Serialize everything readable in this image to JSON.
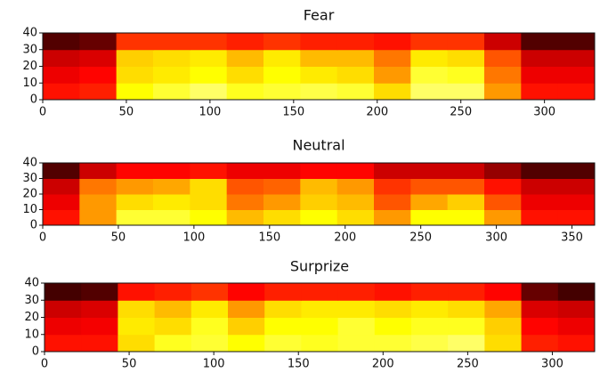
{
  "chart_data": [
    {
      "type": "heatmap",
      "title": "Fear",
      "colormap": "hot",
      "xlim": [
        0,
        330
      ],
      "xticks": [
        0,
        50,
        100,
        150,
        200,
        250,
        300
      ],
      "ylim": [
        0,
        40
      ],
      "yticks": [
        0,
        10,
        20,
        30,
        40
      ],
      "z": [
        [
          0.4,
          0.42,
          0.75,
          0.8,
          0.85,
          0.78,
          0.8,
          0.82,
          0.8,
          0.7,
          0.85,
          0.85,
          0.6,
          0.4,
          0.4
        ],
        [
          0.35,
          0.38,
          0.7,
          0.72,
          0.75,
          0.7,
          0.75,
          0.72,
          0.7,
          0.6,
          0.8,
          0.78,
          0.55,
          0.35,
          0.35
        ],
        [
          0.3,
          0.32,
          0.68,
          0.7,
          0.72,
          0.65,
          0.72,
          0.65,
          0.65,
          0.55,
          0.72,
          0.7,
          0.5,
          0.3,
          0.3
        ],
        [
          0.12,
          0.15,
          0.45,
          0.45,
          0.45,
          0.42,
          0.45,
          0.42,
          0.42,
          0.4,
          0.45,
          0.45,
          0.3,
          0.12,
          0.12
        ]
      ]
    },
    {
      "type": "heatmap",
      "title": "Neutral",
      "colormap": "hot",
      "xlim": [
        0,
        365
      ],
      "xticks": [
        0,
        50,
        100,
        150,
        200,
        250,
        300,
        350
      ],
      "ylim": [
        0,
        40
      ],
      "yticks": [
        0,
        10,
        20,
        30,
        40
      ],
      "z": [
        [
          0.4,
          0.6,
          0.8,
          0.8,
          0.75,
          0.65,
          0.7,
          0.75,
          0.7,
          0.6,
          0.75,
          0.75,
          0.6,
          0.4,
          0.4
        ],
        [
          0.35,
          0.6,
          0.7,
          0.72,
          0.7,
          0.55,
          0.6,
          0.68,
          0.65,
          0.5,
          0.62,
          0.68,
          0.5,
          0.35,
          0.35
        ],
        [
          0.3,
          0.55,
          0.6,
          0.62,
          0.7,
          0.5,
          0.52,
          0.65,
          0.6,
          0.45,
          0.5,
          0.5,
          0.4,
          0.3,
          0.3
        ],
        [
          0.12,
          0.3,
          0.38,
          0.38,
          0.4,
          0.35,
          0.35,
          0.38,
          0.38,
          0.3,
          0.3,
          0.3,
          0.22,
          0.12,
          0.12
        ]
      ]
    },
    {
      "type": "heatmap",
      "title": "Surprize",
      "colormap": "hot",
      "xlim": [
        0,
        325
      ],
      "xticks": [
        0,
        50,
        100,
        150,
        200,
        250,
        300
      ],
      "ylim": [
        0,
        40
      ],
      "yticks": [
        0,
        10,
        20,
        30,
        40
      ],
      "z": [
        [
          0.4,
          0.4,
          0.7,
          0.78,
          0.8,
          0.75,
          0.8,
          0.78,
          0.8,
          0.8,
          0.82,
          0.85,
          0.7,
          0.42,
          0.4
        ],
        [
          0.35,
          0.36,
          0.72,
          0.7,
          0.78,
          0.68,
          0.75,
          0.75,
          0.8,
          0.75,
          0.78,
          0.78,
          0.68,
          0.38,
          0.35
        ],
        [
          0.3,
          0.32,
          0.7,
          0.65,
          0.72,
          0.6,
          0.7,
          0.72,
          0.72,
          0.7,
          0.72,
          0.7,
          0.62,
          0.32,
          0.3
        ],
        [
          0.1,
          0.12,
          0.4,
          0.42,
          0.45,
          0.38,
          0.42,
          0.42,
          0.42,
          0.4,
          0.42,
          0.42,
          0.38,
          0.15,
          0.1
        ]
      ]
    }
  ]
}
